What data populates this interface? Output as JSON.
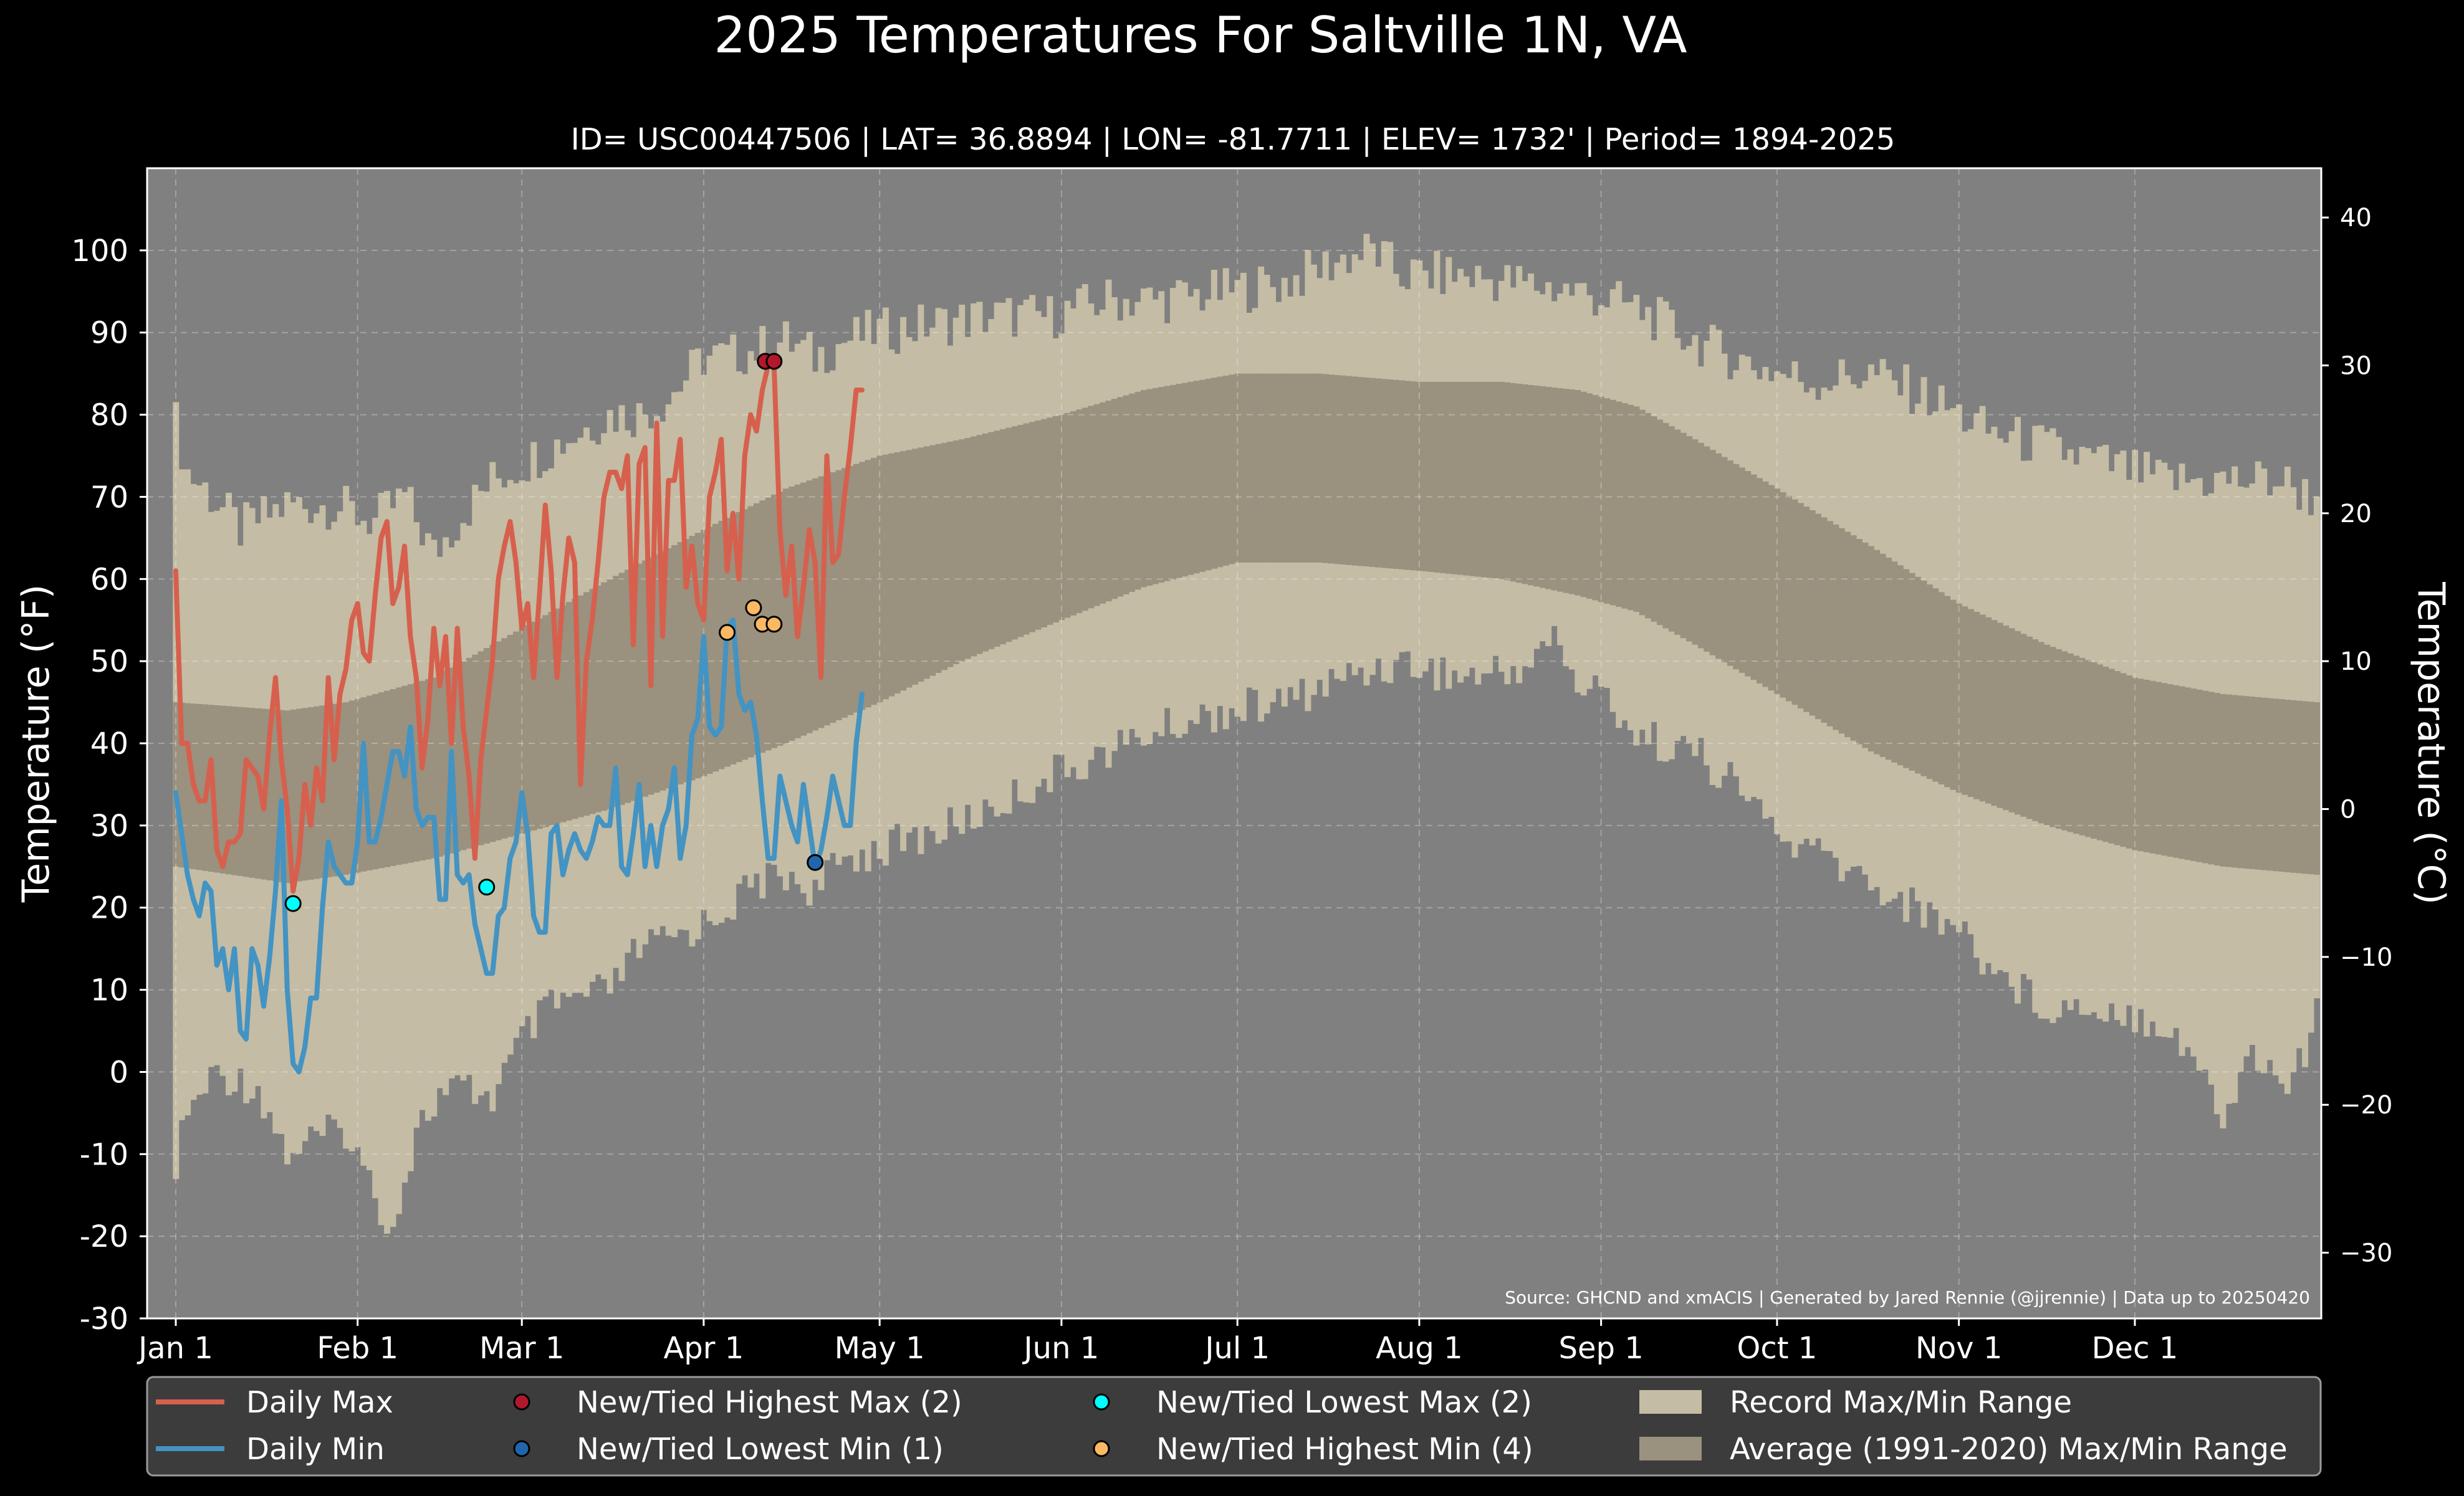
{
  "chart_data": {
    "type": "line",
    "title": "2025 Temperatures For Saltville 1N, VA",
    "subtitle": "ID= USC00447506 | LAT= 36.8894 | LON= -81.7711 | ELEV= 1732' | Period= 1894-2025",
    "ylabel_left": "Temperature ($^\\circ$F)",
    "ylabel_left_text": "Temperature (°F)",
    "ylabel_right_text": "Temperature (°C)",
    "source": "Source: GHCND and xmACIS | Generated by Jared Rennie (@jjrennie) | Data up to 20250420",
    "ylim": [
      -30,
      110
    ],
    "yticks": [
      -30,
      -20,
      -10,
      0,
      10,
      20,
      30,
      40,
      50,
      60,
      70,
      80,
      90,
      100
    ],
    "yticks_c": [
      -30,
      -20,
      -10,
      0,
      10,
      20,
      30,
      40
    ],
    "xlim_day": [
      1,
      366
    ],
    "x_ticks": [
      {
        "day": 1,
        "label": "Jan 1"
      },
      {
        "day": 32,
        "label": "Feb 1"
      },
      {
        "day": 60,
        "label": "Mar 1"
      },
      {
        "day": 91,
        "label": "Apr 1"
      },
      {
        "day": 121,
        "label": "May 1"
      },
      {
        "day": 152,
        "label": "Jun 1"
      },
      {
        "day": 182,
        "label": "Jul 1"
      },
      {
        "day": 213,
        "label": "Aug 1"
      },
      {
        "day": 244,
        "label": "Sep 1"
      },
      {
        "day": 274,
        "label": "Oct 1"
      },
      {
        "day": 305,
        "label": "Nov 1"
      },
      {
        "day": 335,
        "label": "Dec 1"
      }
    ],
    "grid": true,
    "legend_position": "bottom",
    "colors": {
      "background": "#000000",
      "plot_bg": "#808080",
      "record_range": "#c4bca4",
      "normal_range": "#9a917f",
      "daily_max": "#d6604d",
      "daily_min": "#4393c3",
      "new_high_max": "#b2182b",
      "new_low_min": "#2166ac",
      "new_low_max": "#00ffff",
      "new_high_min": "#fdb863",
      "legend_bg": "#3c3c3c"
    },
    "legend": [
      {
        "key": "daily_max",
        "label": "Daily Max",
        "kind": "line"
      },
      {
        "key": "daily_min",
        "label": "Daily Min",
        "kind": "line"
      },
      {
        "key": "new_high_max",
        "label": "New/Tied Highest Max (2)",
        "kind": "dot"
      },
      {
        "key": "new_low_min",
        "label": "New/Tied Lowest Min (1)",
        "kind": "dot"
      },
      {
        "key": "new_low_max",
        "label": "New/Tied Lowest Max (2)",
        "kind": "dot"
      },
      {
        "key": "new_high_min",
        "label": "New/Tied Highest Min (4)",
        "kind": "dot"
      },
      {
        "key": "record_range",
        "label": "Record Max/Min Range",
        "kind": "patch"
      },
      {
        "key": "normal_range",
        "label": "Average (1991-2020) Max/Min Range",
        "kind": "patch"
      }
    ],
    "record_max_anchors": [
      [
        1,
        79
      ],
      [
        3,
        73
      ],
      [
        6,
        71
      ],
      [
        12,
        66
      ],
      [
        20,
        69
      ],
      [
        28,
        69
      ],
      [
        35,
        67
      ],
      [
        40,
        70
      ],
      [
        45,
        63
      ],
      [
        50,
        68
      ],
      [
        55,
        72
      ],
      [
        60,
        74
      ],
      [
        65,
        76
      ],
      [
        70,
        78
      ],
      [
        75,
        80
      ],
      [
        80,
        80
      ],
      [
        85,
        82
      ],
      [
        91,
        87
      ],
      [
        95,
        87
      ],
      [
        100,
        88
      ],
      [
        105,
        89
      ],
      [
        110,
        87
      ],
      [
        115,
        89
      ],
      [
        120,
        90
      ],
      [
        130,
        91
      ],
      [
        140,
        92
      ],
      [
        150,
        92
      ],
      [
        160,
        94
      ],
      [
        170,
        94
      ],
      [
        180,
        95
      ],
      [
        190,
        96
      ],
      [
        200,
        99
      ],
      [
        205,
        100
      ],
      [
        210,
        97
      ],
      [
        220,
        97
      ],
      [
        230,
        96
      ],
      [
        240,
        95
      ],
      [
        250,
        93
      ],
      [
        260,
        89
      ],
      [
        270,
        86
      ],
      [
        280,
        84
      ],
      [
        290,
        85
      ],
      [
        300,
        82
      ],
      [
        310,
        78
      ],
      [
        320,
        76
      ],
      [
        330,
        74
      ],
      [
        340,
        72
      ],
      [
        350,
        72
      ],
      [
        360,
        72
      ],
      [
        365,
        70
      ]
    ],
    "record_min_anchors": [
      [
        1,
        -11
      ],
      [
        3,
        -5
      ],
      [
        8,
        0
      ],
      [
        15,
        -2
      ],
      [
        20,
        -10
      ],
      [
        25,
        -8
      ],
      [
        30,
        -7
      ],
      [
        35,
        -15
      ],
      [
        38,
        -19
      ],
      [
        42,
        -7
      ],
      [
        46,
        -3
      ],
      [
        50,
        -2
      ],
      [
        55,
        -3
      ],
      [
        60,
        4
      ],
      [
        65,
        8
      ],
      [
        70,
        9
      ],
      [
        75,
        10
      ],
      [
        80,
        15
      ],
      [
        85,
        16
      ],
      [
        91,
        18
      ],
      [
        95,
        20
      ],
      [
        100,
        23
      ],
      [
        105,
        24
      ],
      [
        110,
        22
      ],
      [
        115,
        26
      ],
      [
        120,
        27
      ],
      [
        130,
        29
      ],
      [
        140,
        32
      ],
      [
        150,
        36
      ],
      [
        160,
        39
      ],
      [
        170,
        42
      ],
      [
        180,
        44
      ],
      [
        190,
        45
      ],
      [
        200,
        48
      ],
      [
        210,
        50
      ],
      [
        220,
        48
      ],
      [
        230,
        49
      ],
      [
        236,
        53
      ],
      [
        240,
        47
      ],
      [
        245,
        46
      ],
      [
        250,
        41
      ],
      [
        260,
        39
      ],
      [
        270,
        33
      ],
      [
        275,
        28
      ],
      [
        280,
        27
      ],
      [
        290,
        23
      ],
      [
        300,
        19
      ],
      [
        305,
        18
      ],
      [
        310,
        13
      ],
      [
        320,
        8
      ],
      [
        330,
        8
      ],
      [
        340,
        6
      ],
      [
        345,
        2
      ],
      [
        350,
        -6
      ],
      [
        355,
        3
      ],
      [
        360,
        -2
      ],
      [
        365,
        3
      ],
      [
        366,
        9
      ]
    ],
    "normal_max_anchors": [
      [
        1,
        45
      ],
      [
        20,
        44
      ],
      [
        30,
        45
      ],
      [
        45,
        48
      ],
      [
        60,
        54
      ],
      [
        75,
        60
      ],
      [
        91,
        66
      ],
      [
        105,
        71
      ],
      [
        121,
        75
      ],
      [
        135,
        77
      ],
      [
        152,
        80
      ],
      [
        166,
        83
      ],
      [
        182,
        85
      ],
      [
        196,
        85
      ],
      [
        213,
        84
      ],
      [
        227,
        84
      ],
      [
        240,
        83
      ],
      [
        250,
        81
      ],
      [
        260,
        77
      ],
      [
        274,
        71
      ],
      [
        290,
        64
      ],
      [
        305,
        57
      ],
      [
        320,
        52
      ],
      [
        335,
        48
      ],
      [
        350,
        46
      ],
      [
        366,
        45
      ]
    ],
    "normal_min_anchors": [
      [
        1,
        25
      ],
      [
        20,
        23
      ],
      [
        30,
        24
      ],
      [
        45,
        26
      ],
      [
        60,
        29
      ],
      [
        75,
        32
      ],
      [
        91,
        36
      ],
      [
        105,
        40
      ],
      [
        121,
        45
      ],
      [
        135,
        50
      ],
      [
        152,
        55
      ],
      [
        166,
        59
      ],
      [
        182,
        62
      ],
      [
        196,
        62
      ],
      [
        213,
        61
      ],
      [
        227,
        60
      ],
      [
        240,
        58
      ],
      [
        250,
        56
      ],
      [
        260,
        52
      ],
      [
        274,
        46
      ],
      [
        290,
        39
      ],
      [
        305,
        34
      ],
      [
        320,
        30
      ],
      [
        335,
        27
      ],
      [
        350,
        25
      ],
      [
        366,
        24
      ]
    ],
    "daily_max": [
      61,
      40,
      40,
      35,
      33,
      33,
      38,
      27,
      25,
      28,
      28,
      29,
      38,
      37,
      36,
      32,
      41,
      48,
      38,
      32,
      22,
      26,
      35,
      30,
      37,
      33,
      48,
      38,
      46,
      49,
      55,
      57,
      51,
      50,
      58,
      65,
      67,
      57,
      59,
      64,
      53,
      48,
      37,
      43,
      54,
      47,
      53,
      40,
      54,
      42,
      36,
      26,
      38,
      44,
      50,
      60,
      64,
      67,
      62,
      54,
      57,
      48,
      58,
      69,
      61,
      48,
      58,
      65,
      62,
      35,
      50,
      55,
      62,
      70,
      73,
      73,
      71,
      75,
      52,
      74,
      76,
      47,
      79,
      53,
      72,
      72,
      77,
      59,
      64,
      57,
      55,
      70,
      73,
      77,
      61,
      68,
      60,
      75,
      80,
      78,
      83,
      86,
      86,
      66,
      58,
      64,
      53,
      59,
      66,
      62,
      48,
      75,
      62,
      63,
      70,
      76,
      83,
      83
    ],
    "daily_min": [
      34,
      29,
      24,
      21,
      19,
      23,
      22,
      13,
      15,
      10,
      15,
      5,
      4,
      15,
      13,
      8,
      14,
      22,
      33,
      10,
      1,
      0,
      3,
      9,
      9,
      20,
      28,
      25,
      24,
      23,
      23,
      28,
      40,
      28,
      28,
      31,
      35,
      39,
      39,
      36,
      42,
      32,
      30,
      31,
      31,
      21,
      21,
      39,
      24,
      23,
      24,
      18,
      15,
      12,
      12,
      19,
      20,
      26,
      28,
      34,
      29,
      19,
      17,
      17,
      29,
      30,
      24,
      27,
      29,
      27,
      26,
      28,
      31,
      30,
      30,
      37,
      25,
      24,
      29,
      35,
      25,
      30,
      25,
      30,
      32,
      37,
      26,
      30,
      41,
      43,
      53,
      42,
      41,
      42,
      54,
      55,
      46,
      44,
      45,
      41,
      33,
      26,
      26,
      36,
      33,
      30,
      28,
      35,
      30,
      25,
      27,
      31,
      36,
      33,
      30,
      30,
      40,
      46
    ],
    "points": {
      "new_high_max": [
        [
          101.5,
          86.5
        ],
        [
          103,
          86.5
        ]
      ],
      "new_low_min": [
        [
          110,
          25.5
        ]
      ],
      "new_low_max": [
        [
          21,
          20.5
        ],
        [
          54,
          22.5
        ]
      ],
      "new_high_min": [
        [
          95,
          53.5
        ],
        [
          99.5,
          56.5
        ],
        [
          101,
          54.5
        ],
        [
          103,
          54.5
        ]
      ]
    }
  }
}
